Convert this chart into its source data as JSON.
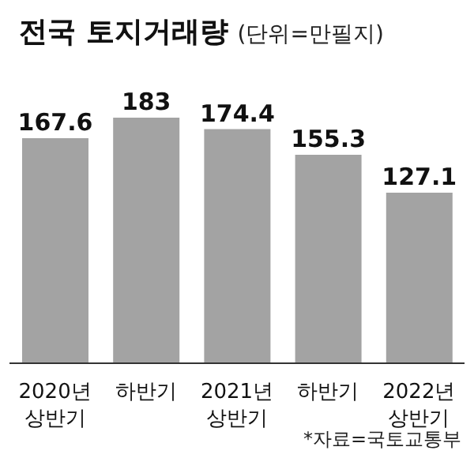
{
  "chart_data": {
    "type": "bar",
    "title": "전국 토지거래량",
    "subtitle": "(단위=만필지)",
    "categories": [
      "2020년\n상반기",
      "하반기",
      "2021년\n상반기",
      "하반기",
      "2022년\n상반기"
    ],
    "values": [
      167.6,
      183,
      174.4,
      155.3,
      127.1
    ],
    "color": "#a3a3a3",
    "data_labels": true,
    "annotations": [
      "*자료=국토교통부"
    ]
  }
}
